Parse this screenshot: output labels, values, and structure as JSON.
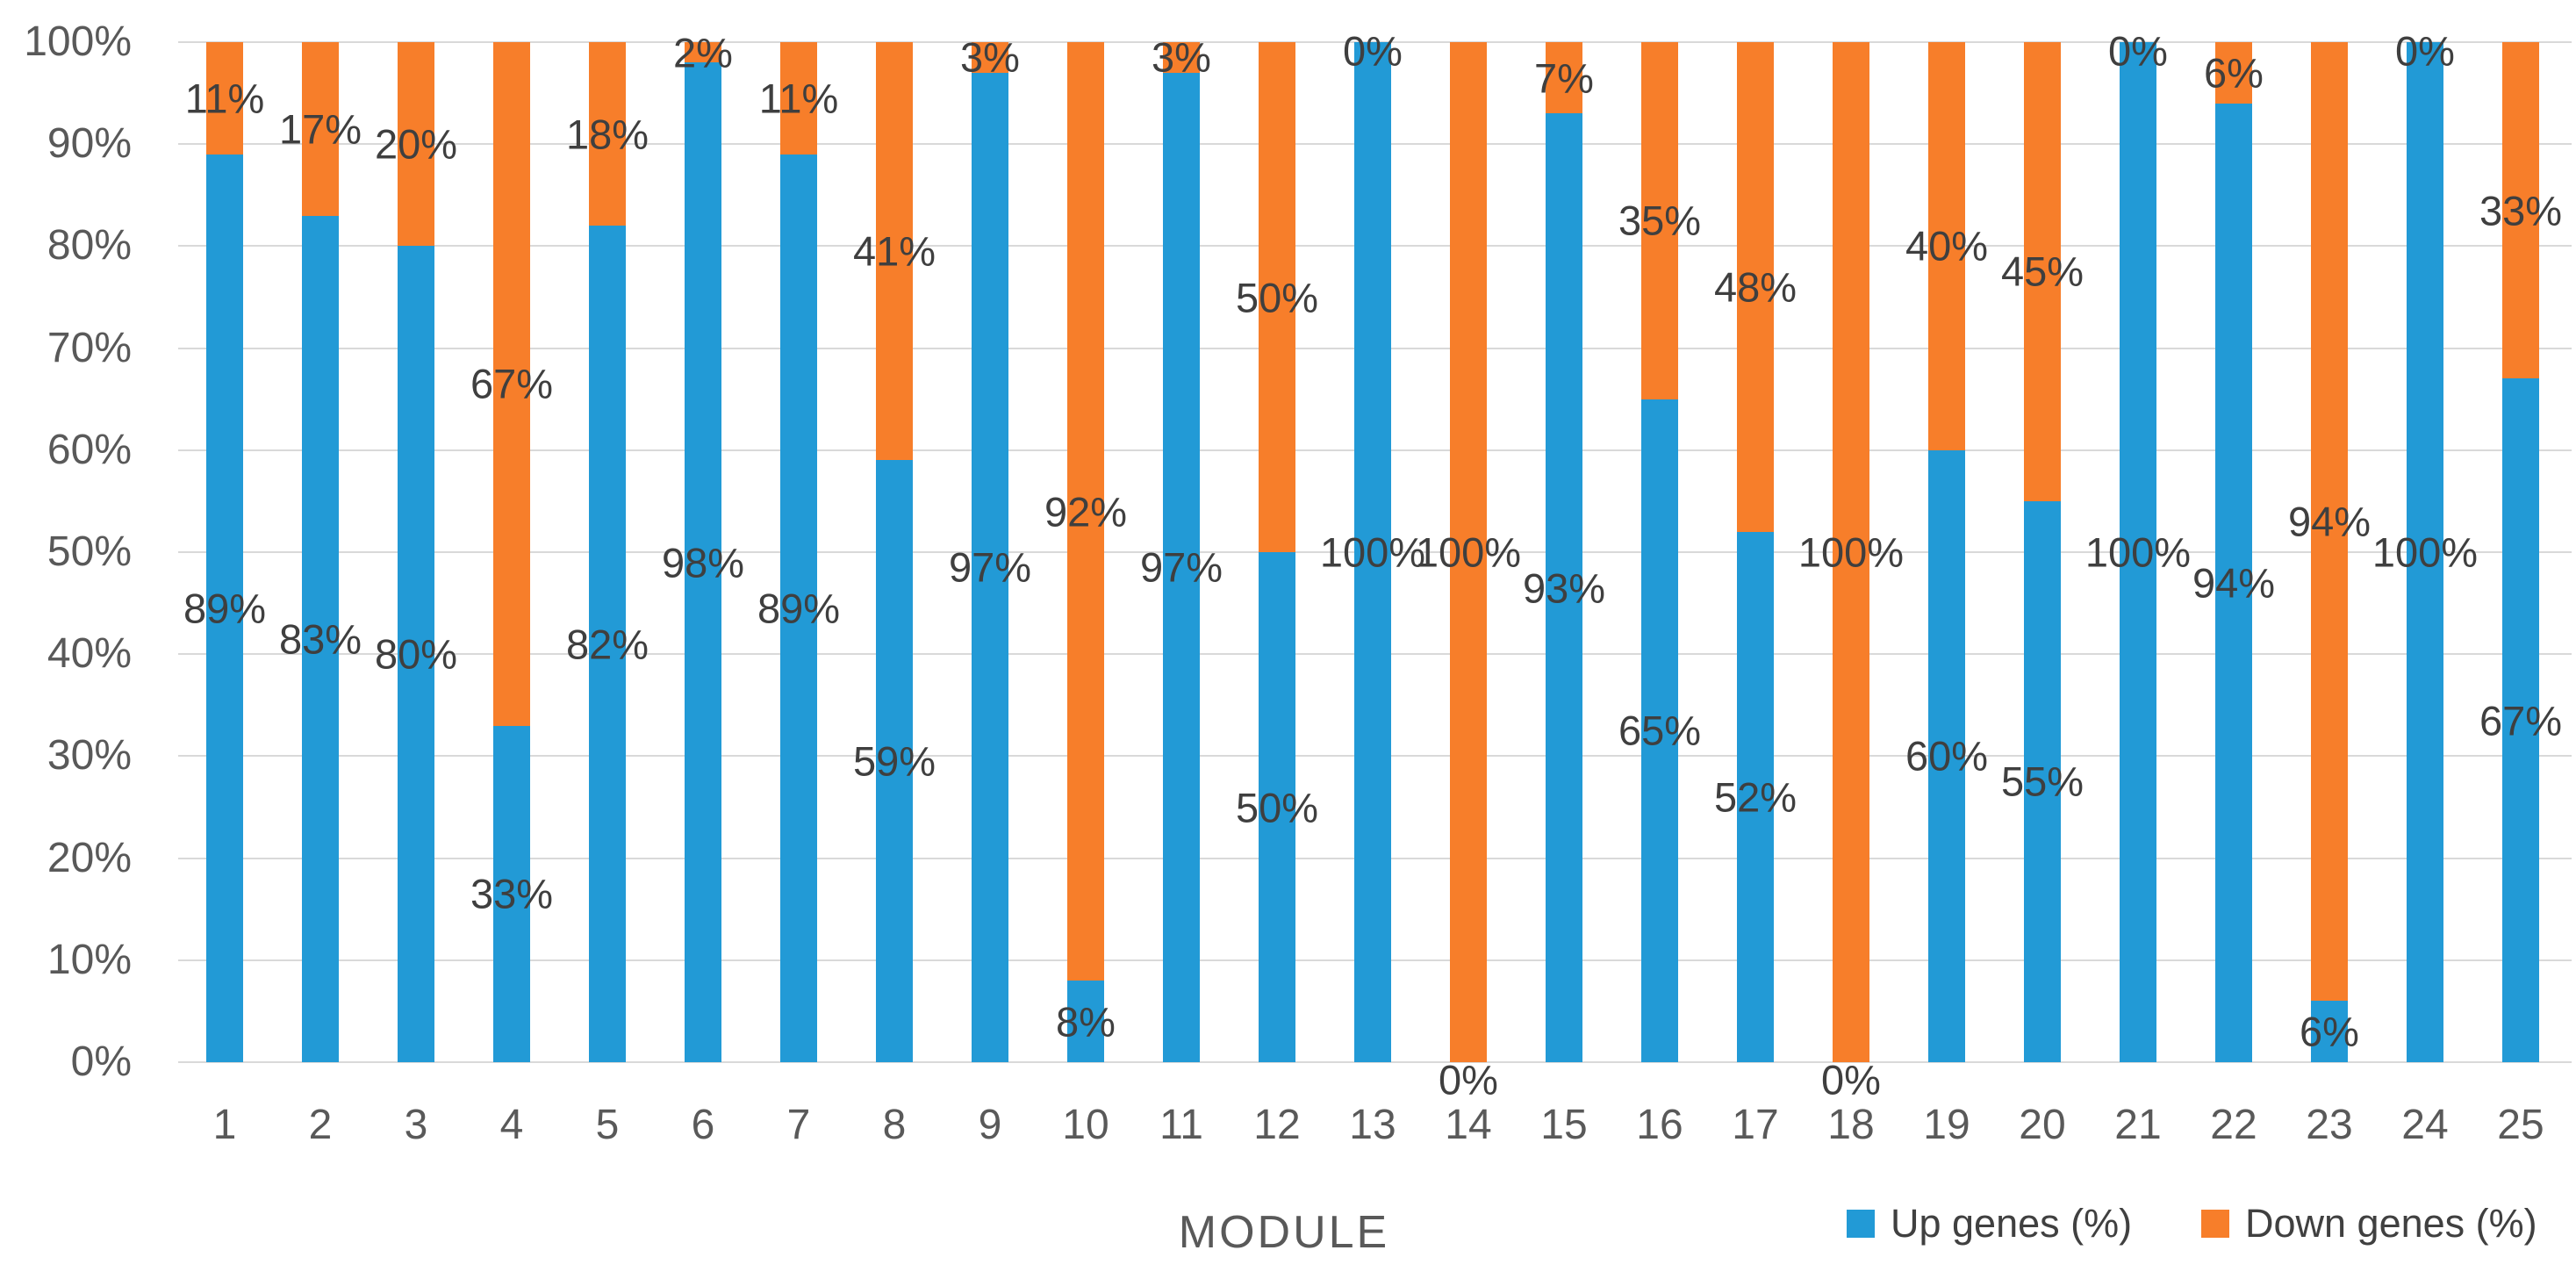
{
  "chart_data": {
    "type": "bar",
    "subtype": "stacked-100-percent-column",
    "title": "",
    "xlabel": "MODULE",
    "ylabel": "",
    "ylim": [
      0,
      100
    ],
    "grid": true,
    "gridline_color": "#D9D9D9",
    "legend_position": "bottom-right",
    "data_label_format": "{value}%",
    "data_label_color": "#3F3F3F",
    "tick_label_color": "#595959",
    "y_tick_labels": [
      "0%",
      "10%",
      "20%",
      "30%",
      "40%",
      "50%",
      "60%",
      "70%",
      "80%",
      "90%",
      "100%"
    ],
    "categories": [
      "1",
      "2",
      "3",
      "4",
      "5",
      "6",
      "7",
      "8",
      "9",
      "10",
      "11",
      "12",
      "13",
      "14",
      "15",
      "16",
      "17",
      "18",
      "19",
      "20",
      "21",
      "22",
      "23",
      "24",
      "25"
    ],
    "series": [
      {
        "name": "Up genes (%)",
        "color": "#229AD6",
        "values": [
          89,
          83,
          80,
          33,
          82,
          98,
          89,
          59,
          97,
          8,
          97,
          50,
          100,
          0,
          93,
          65,
          52,
          0,
          60,
          55,
          100,
          94,
          6,
          100,
          67
        ]
      },
      {
        "name": "Down genes (%)",
        "color": "#F77E2A",
        "values": [
          11,
          17,
          20,
          67,
          18,
          2,
          11,
          41,
          3,
          92,
          3,
          50,
          0,
          100,
          7,
          35,
          48,
          100,
          40,
          45,
          0,
          6,
          94,
          0,
          33
        ]
      }
    ]
  }
}
